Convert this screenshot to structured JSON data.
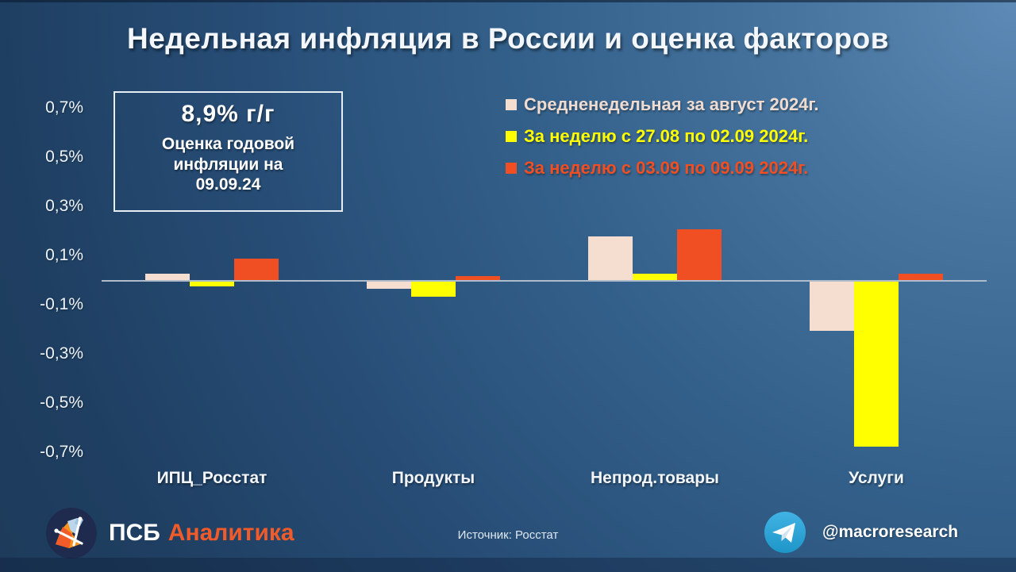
{
  "title": "Недельная инфляция в России и оценка факторов",
  "annotation": {
    "headline": "8,9% г/г",
    "subtext": "Оценка годовой\nинфляции на\n09.09.24"
  },
  "colors": {
    "series_avg_august": "#f5ddd0",
    "series_week1": "#ffff00",
    "series_week2": "#f04e23",
    "legend_text_avg": "#eedcd2",
    "axis_line": "#aebccb",
    "brand_orange": "#f15a29",
    "telegram_blue": "#34a3dd"
  },
  "chart_data": {
    "type": "bar",
    "categories": [
      "ИПЦ_Росстат",
      "Продукты",
      "Непрод.товары",
      "Услуги"
    ],
    "series": [
      {
        "name": "Средненедельная за август 2024г.",
        "color": "#f5ddd0",
        "text_color": "#eedcd2",
        "values": [
          0.03,
          -0.03,
          0.18,
          -0.2
        ]
      },
      {
        "name": "За неделю с 27.08 по 02.09 2024г.",
        "color": "#ffff00",
        "text_color": "#ffff00",
        "values": [
          -0.02,
          -0.06,
          0.03,
          -0.67
        ]
      },
      {
        "name": "За неделю с 03.09 по 09.09 2024г.",
        "color": "#f04e23",
        "text_color": "#f04e23",
        "values": [
          0.09,
          0.02,
          0.21,
          0.03
        ]
      }
    ],
    "title": "Недельная инфляция в России и оценка факторов",
    "xlabel": "",
    "ylabel": "",
    "y_ticks": [
      {
        "label": "0,7%",
        "value": 0.7
      },
      {
        "label": "0,5%",
        "value": 0.5
      },
      {
        "label": "0,3%",
        "value": 0.3
      },
      {
        "label": "0,1%",
        "value": 0.1
      },
      {
        "label": "-0,1%",
        "value": -0.1
      },
      {
        "label": "-0,3%",
        "value": -0.3
      },
      {
        "label": "-0,5%",
        "value": -0.5
      },
      {
        "label": "-0,7%",
        "value": -0.7
      }
    ],
    "ylim": [
      -0.8,
      0.8
    ],
    "grid": false,
    "legend_position": "top-right"
  },
  "footer": {
    "brand_psb": "ПСБ",
    "brand_analytics": "Аналитика",
    "source": "Источник: Росстат",
    "telegram_handle": "@macroresearch"
  }
}
